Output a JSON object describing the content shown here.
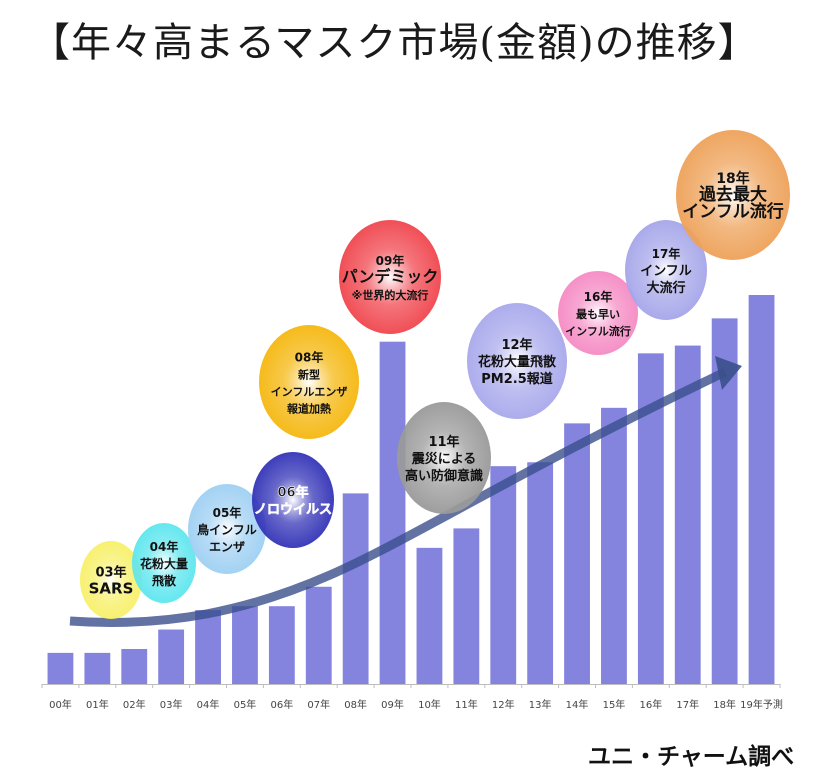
{
  "title": "【年々高まるマスク市場(金額)の推移】",
  "source": "ユニ・チャーム調べ",
  "colors": {
    "bar": "#8484de",
    "arrow": "#3a4f8c",
    "axis": "#bdbdbd"
  },
  "chart_data": {
    "type": "bar",
    "title": "【年々高まるマスク市場(金額)の推移】",
    "xlabel": "",
    "ylabel": "",
    "y_axis_shown": false,
    "value_note": "relative market value (no y-axis scale shown; estimated index, 19年予測 = 100)",
    "ylim": [
      0,
      100
    ],
    "grid": false,
    "categories": [
      "00年",
      "01年",
      "02年",
      "03年",
      "04年",
      "05年",
      "06年",
      "07年",
      "08年",
      "09年",
      "10年",
      "11年",
      "12年",
      "13年",
      "14年",
      "15年",
      "16年",
      "17年",
      "18年",
      "19年予測"
    ],
    "values": [
      8,
      8,
      9,
      14,
      19,
      20,
      20,
      25,
      49,
      88,
      35,
      40,
      56,
      57,
      67,
      71,
      85,
      87,
      94,
      100
    ],
    "trend_arrow": "upward curved arrow from 00年 to 18年",
    "annotations": [
      {
        "year_index": 3,
        "lines": [
          "03年",
          "SARS"
        ],
        "color": "#f7f06a"
      },
      {
        "year_index": 4,
        "lines": [
          "04年",
          "花粉大量",
          "飛散"
        ],
        "color": "#5ee6ee"
      },
      {
        "year_index": 5,
        "lines": [
          "05年",
          "鳥インフル",
          "エンザ"
        ],
        "color": "#9fd0f3"
      },
      {
        "year_index": 6,
        "lines": [
          "06年",
          "ノロウイルス"
        ],
        "color": "#3535b8"
      },
      {
        "year_index": 8,
        "lines": [
          "08年",
          "新型",
          "インフルエンザ",
          "報道加熱"
        ],
        "color": "#f5b811"
      },
      {
        "year_index": 9,
        "lines": [
          "09年",
          "パンデミック",
          "※世界的大流行"
        ],
        "color": "#f0474f"
      },
      {
        "year_index": 11,
        "lines": [
          "11年",
          "震災による",
          "高い防御意識"
        ],
        "color": "#9a9a9a"
      },
      {
        "year_index": 12,
        "lines": [
          "12年",
          "花粉大量飛散",
          "PM2.5報道"
        ],
        "color": "#a9a9ec"
      },
      {
        "year_index": 16,
        "lines": [
          "16年",
          "最も早い",
          "インフル流行"
        ],
        "color": "#f58bc4"
      },
      {
        "year_index": 17,
        "lines": [
          "17年",
          "インフル",
          "大流行"
        ],
        "color": "#a6a6ea"
      },
      {
        "year_index": 18,
        "lines": [
          "18年",
          "過去最大",
          "インフル流行"
        ],
        "color": "#eea25a"
      }
    ]
  }
}
